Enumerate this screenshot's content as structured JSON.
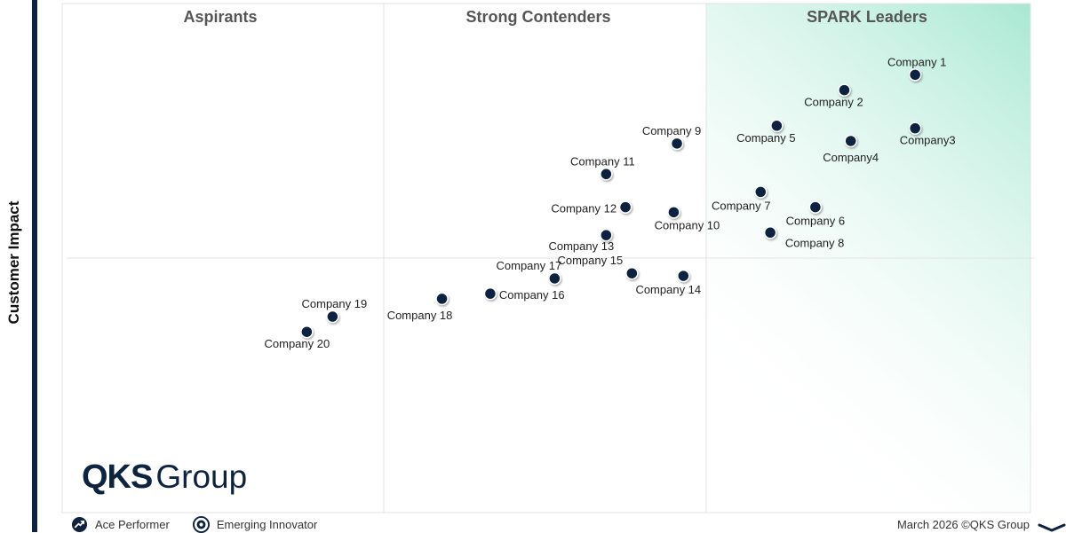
{
  "y_axis_title": "Customer Impact",
  "logo": {
    "primary": "QKS",
    "secondary": "Group"
  },
  "legend": [
    {
      "label": "Ace Performer",
      "icon": "ace-performer-icon"
    },
    {
      "label": "Emerging Innovator",
      "icon": "emerging-innovator-icon"
    }
  ],
  "footer": "March 2026 ©QKS Group",
  "colors": {
    "marker": "#0d2340",
    "leader_gradient": "#a8e8d3",
    "axis_bar": "#0d2340",
    "quadrant_title": "#555555",
    "grid_line": "#e3e3e3"
  },
  "chart_data": {
    "type": "scatter",
    "title": "",
    "quadrants": [
      {
        "label": "Aspirants"
      },
      {
        "label": "Strong Contenders"
      },
      {
        "label": "SPARK Leaders"
      }
    ],
    "xlabel": "",
    "ylabel": "Customer Impact",
    "grid": false,
    "xlim": [
      0,
      3
    ],
    "ylim": [
      0,
      2
    ],
    "points": [
      {
        "name": "Company 1",
        "x": 2.65,
        "y": 1.72
      },
      {
        "name": "Company 2",
        "x": 2.43,
        "y": 1.66
      },
      {
        "name": "Company3",
        "x": 2.65,
        "y": 1.51
      },
      {
        "name": "Company4",
        "x": 2.45,
        "y": 1.46
      },
      {
        "name": "Company 5",
        "x": 2.22,
        "y": 1.52
      },
      {
        "name": "Company 6",
        "x": 2.34,
        "y": 1.2
      },
      {
        "name": "Company 7",
        "x": 2.17,
        "y": 1.26
      },
      {
        "name": "Company 8",
        "x": 2.2,
        "y": 1.1
      },
      {
        "name": "Company 9",
        "x": 1.91,
        "y": 1.45
      },
      {
        "name": "Company 10",
        "x": 1.9,
        "y": 1.18
      },
      {
        "name": "Company 11",
        "x": 1.69,
        "y": 1.33
      },
      {
        "name": "Company 12",
        "x": 1.75,
        "y": 1.2
      },
      {
        "name": "Company 13",
        "x": 1.69,
        "y": 1.09
      },
      {
        "name": "Company 14",
        "x": 1.93,
        "y": 0.93
      },
      {
        "name": "Company 15",
        "x": 1.77,
        "y": 0.94
      },
      {
        "name": "Company 16",
        "x": 1.33,
        "y": 0.86
      },
      {
        "name": "Company 17",
        "x": 1.53,
        "y": 0.92
      },
      {
        "name": "Company 18",
        "x": 1.18,
        "y": 0.84
      },
      {
        "name": "Company 19",
        "x": 0.84,
        "y": 0.77
      },
      {
        "name": "Company 20",
        "x": 0.76,
        "y": 0.71
      }
    ]
  }
}
